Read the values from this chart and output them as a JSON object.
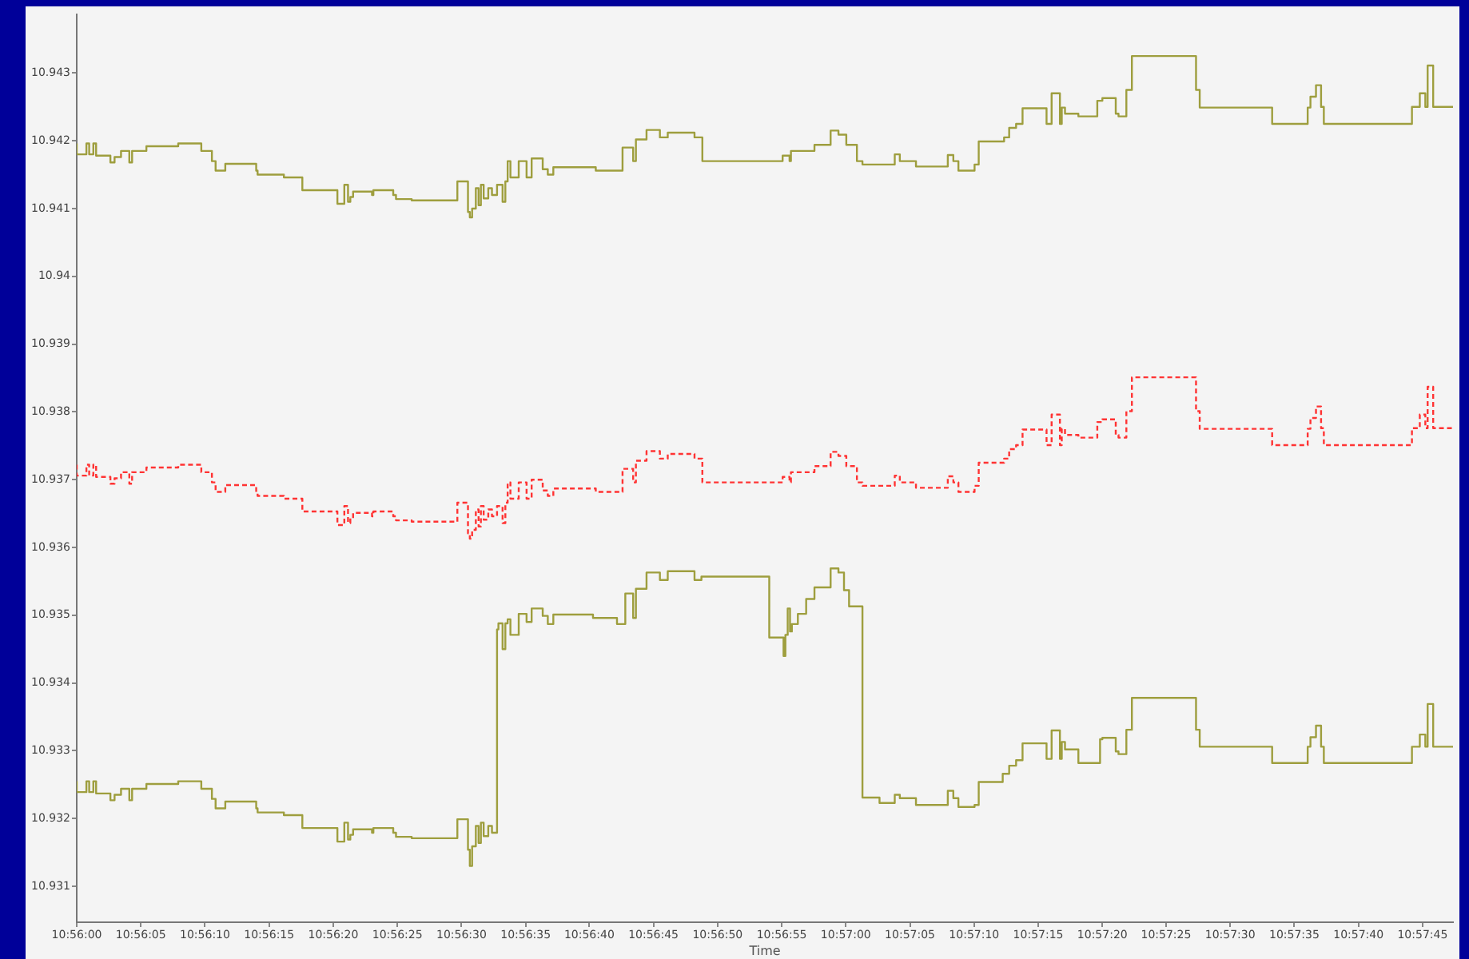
{
  "chart_data": {
    "type": "step",
    "xlabel": "Time",
    "grid": false,
    "xlim": [
      10.93333,
      10.96316
    ],
    "ylim": [
      10.93047,
      10.94386
    ],
    "xticks": [
      {
        "value": 10.93333,
        "label": "10:56:00"
      },
      {
        "value": 10.93472,
        "label": "10:56:05"
      },
      {
        "value": 10.93611,
        "label": "10:56:10"
      },
      {
        "value": 10.9375,
        "label": "10:56:15"
      },
      {
        "value": 10.93889,
        "label": "10:56:20"
      },
      {
        "value": 10.94028,
        "label": "10:56:25"
      },
      {
        "value": 10.94167,
        "label": "10:56:30"
      },
      {
        "value": 10.94306,
        "label": "10:56:35"
      },
      {
        "value": 10.94444,
        "label": "10:56:40"
      },
      {
        "value": 10.94583,
        "label": "10:56:45"
      },
      {
        "value": 10.94722,
        "label": "10:56:50"
      },
      {
        "value": 10.94861,
        "label": "10:56:55"
      },
      {
        "value": 10.95,
        "label": "10:57:00"
      },
      {
        "value": 10.95139,
        "label": "10:57:05"
      },
      {
        "value": 10.95278,
        "label": "10:57:10"
      },
      {
        "value": 10.95417,
        "label": "10:57:15"
      },
      {
        "value": 10.95556,
        "label": "10:57:20"
      },
      {
        "value": 10.95694,
        "label": "10:57:25"
      },
      {
        "value": 10.95833,
        "label": "10:57:30"
      },
      {
        "value": 10.95972,
        "label": "10:57:35"
      },
      {
        "value": 10.96111,
        "label": "10:57:40"
      },
      {
        "value": 10.9625,
        "label": "10:57:45"
      }
    ],
    "yticks": [
      10.931,
      10.932,
      10.933,
      10.934,
      10.935,
      10.936,
      10.937,
      10.938,
      10.939,
      10.94,
      10.941,
      10.942,
      10.943
    ],
    "x": [
      10.93333,
      10.93354,
      10.9336,
      10.93369,
      10.93375,
      10.93406,
      10.93415,
      10.93429,
      10.93447,
      10.93453,
      10.93484,
      10.93553,
      10.93603,
      10.93626,
      10.93634,
      10.93655,
      10.93722,
      10.93725,
      10.93782,
      10.93822,
      10.93898,
      10.93913,
      10.93921,
      10.93926,
      10.93932,
      10.93973,
      10.93976,
      10.94019,
      10.94025,
      10.94059,
      10.94158,
      10.94181,
      10.94185,
      10.9419,
      10.94198,
      10.94204,
      10.94209,
      10.94215,
      10.94225,
      10.94233,
      10.94244,
      10.94256,
      10.94262,
      10.94267,
      10.94273,
      10.94291,
      10.94308,
      10.94319,
      10.94343,
      10.94354,
      10.94366,
      10.94458,
      10.94516,
      10.94539,
      10.94545,
      10.94568,
      10.94597,
      10.94614,
      10.94672,
      10.94689,
      10.94863,
      10.94878,
      10.94881,
      10.94932,
      10.94967,
      10.94984,
      10.95001,
      10.95024,
      10.95036,
      10.95106,
      10.95117,
      10.95152,
      10.95221,
      10.95233,
      10.95244,
      10.95279,
      10.95288,
      10.95343,
      10.95354,
      10.95369,
      10.95383,
      10.95435,
      10.95446,
      10.95464,
      10.95468,
      10.95475,
      10.95504,
      10.95545,
      10.95556,
      10.95585,
      10.95591,
      10.95608,
      10.9562,
      10.95759,
      10.95767,
      10.95924,
      10.96001,
      10.96007,
      10.96019,
      10.9603,
      10.96036,
      10.96227,
      10.96244,
      10.96256,
      10.96261,
      10.96273,
      10.96284,
      10.96316
    ],
    "series": [
      {
        "color": "#9e9e3e",
        "values": [
          10.94196,
          10.9418,
          10.94196,
          10.9418,
          10.94196,
          10.94178,
          10.94168,
          10.94176,
          10.94185,
          10.94168,
          10.94185,
          10.94192,
          10.94196,
          10.94185,
          10.9417,
          10.94156,
          10.94166,
          10.94156,
          10.9415,
          10.94146,
          10.94127,
          10.94107,
          10.94135,
          10.9411,
          10.94117,
          10.94125,
          10.9412,
          10.94127,
          10.9412,
          10.94114,
          10.94112,
          10.9414,
          10.94095,
          10.94087,
          10.941,
          10.9413,
          10.94105,
          10.94135,
          10.94115,
          10.9413,
          10.9412,
          10.94135,
          10.9411,
          10.9414,
          10.9417,
          10.94146,
          10.9417,
          10.94146,
          10.94174,
          10.94158,
          10.9415,
          10.94161,
          10.94156,
          10.9419,
          10.9417,
          10.94202,
          10.94216,
          10.94205,
          10.94212,
          10.94205,
          10.9417,
          10.94178,
          10.9417,
          10.94185,
          10.94194,
          10.94215,
          10.94209,
          10.94194,
          10.9417,
          10.94165,
          10.9418,
          10.9417,
          10.94162,
          10.94179,
          10.9417,
          10.94156,
          10.94165,
          10.94199,
          10.94205,
          10.94219,
          10.94225,
          10.94248,
          10.94225,
          10.9427,
          10.94225,
          10.94249,
          10.9424,
          10.94236,
          10.94259,
          10.94263,
          10.9424,
          10.94236,
          10.94275,
          10.94325,
          10.94275,
          10.94249,
          10.94225,
          10.94249,
          10.94265,
          10.94282,
          10.9425,
          10.94225,
          10.9425,
          10.9427,
          10.9425,
          10.94311,
          10.9425,
          10.9425
        ]
      },
      {
        "color": "#ff3333",
        "line_style": "dashed",
        "values": [
          10.93722,
          10.93706,
          10.93722,
          10.93706,
          10.93722,
          10.93704,
          10.93694,
          10.93702,
          10.93711,
          10.93694,
          10.93711,
          10.93718,
          10.93722,
          10.93711,
          10.93696,
          10.93682,
          10.93692,
          10.93682,
          10.93676,
          10.93672,
          10.93653,
          10.93633,
          10.93661,
          10.93636,
          10.93643,
          10.93651,
          10.93646,
          10.93653,
          10.93646,
          10.9364,
          10.93638,
          10.93666,
          10.93621,
          10.93613,
          10.93626,
          10.93656,
          10.93631,
          10.93661,
          10.93641,
          10.93656,
          10.93646,
          10.93661,
          10.93636,
          10.93666,
          10.93696,
          10.93672,
          10.93696,
          10.93672,
          10.937,
          10.93684,
          10.93676,
          10.93687,
          10.93682,
          10.93716,
          10.93696,
          10.93728,
          10.93742,
          10.93731,
          10.93738,
          10.93731,
          10.93696,
          10.93704,
          10.93696,
          10.93711,
          10.9372,
          10.93741,
          10.93735,
          10.9372,
          10.93696,
          10.93691,
          10.93706,
          10.93696,
          10.93688,
          10.93705,
          10.93696,
          10.93682,
          10.93691,
          10.93725,
          10.93731,
          10.93745,
          10.93751,
          10.93774,
          10.93751,
          10.93796,
          10.93751,
          10.93775,
          10.93766,
          10.93762,
          10.93785,
          10.93789,
          10.93766,
          10.93762,
          10.93801,
          10.93851,
          10.93801,
          10.93775,
          10.93751,
          10.93775,
          10.93791,
          10.93808,
          10.93776,
          10.93751,
          10.93776,
          10.93796,
          10.93776,
          10.93837,
          10.93776,
          10.93776
        ]
      },
      {
        "color": "#9e9e3e",
        "x": [
          10.93333,
          10.93354,
          10.9336,
          10.93369,
          10.93375,
          10.93406,
          10.93415,
          10.93429,
          10.93447,
          10.93453,
          10.93484,
          10.93553,
          10.93603,
          10.93626,
          10.93634,
          10.93655,
          10.93722,
          10.93725,
          10.93782,
          10.93822,
          10.93898,
          10.93913,
          10.93921,
          10.93926,
          10.93932,
          10.93973,
          10.93976,
          10.94019,
          10.94025,
          10.94059,
          10.94158,
          10.94181,
          10.94185,
          10.9419,
          10.94198,
          10.94204,
          10.94209,
          10.94215,
          10.94225,
          10.94233,
          10.94244,
          10.94247,
          10.94256,
          10.94262,
          10.94267,
          10.94273,
          10.94291,
          10.94308,
          10.94319,
          10.94343,
          10.94354,
          10.94366,
          10.94452,
          10.94504,
          10.94522,
          10.94539,
          10.94545,
          10.94568,
          10.94597,
          10.94614,
          10.94672,
          10.94687,
          10.94834,
          10.94865,
          10.94869,
          10.94874,
          10.94879,
          10.94883,
          10.94896,
          10.94914,
          10.94932,
          10.94967,
          10.94984,
          10.94996,
          10.95007,
          10.95036,
          10.95073,
          10.95106,
          10.95117,
          10.95152,
          10.95221,
          10.95233,
          10.95244,
          10.95279,
          10.95288,
          10.9534,
          10.95354,
          10.95369,
          10.95383,
          10.95435,
          10.95446,
          10.95464,
          10.95468,
          10.95475,
          10.95504,
          10.95551,
          10.95556,
          10.95585,
          10.95591,
          10.95608,
          10.9562,
          10.95759,
          10.95767,
          10.95924,
          10.96001,
          10.96007,
          10.96019,
          10.9603,
          10.96036,
          10.96227,
          10.96244,
          10.96256,
          10.96261,
          10.96273,
          10.96284,
          10.96316
        ],
        "values": [
          10.93255,
          10.93239,
          10.93255,
          10.93239,
          10.93255,
          10.93237,
          10.93227,
          10.93235,
          10.93244,
          10.93227,
          10.93244,
          10.93251,
          10.93255,
          10.93244,
          10.93229,
          10.93215,
          10.93225,
          10.93215,
          10.93209,
          10.93205,
          10.93186,
          10.93166,
          10.93194,
          10.93169,
          10.93176,
          10.93184,
          10.93179,
          10.93186,
          10.93179,
          10.93173,
          10.93171,
          10.93199,
          10.93154,
          10.9313,
          10.93159,
          10.93189,
          10.93164,
          10.93194,
          10.93174,
          10.93189,
          10.93179,
          10.93479,
          10.93488,
          10.9345,
          10.93488,
          10.93494,
          10.93471,
          10.93502,
          10.9349,
          10.9351,
          10.93499,
          10.93487,
          10.93501,
          10.93496,
          10.93487,
          10.93532,
          10.93496,
          10.93539,
          10.93563,
          10.93552,
          10.93565,
          10.93552,
          10.93557,
          10.93467,
          10.9344,
          10.93471,
          10.9351,
          10.93476,
          10.93487,
          10.93502,
          10.93524,
          10.93541,
          10.93569,
          10.93563,
          10.93537,
          10.93513,
          10.93231,
          10.93223,
          10.93235,
          10.9323,
          10.9322,
          10.93241,
          10.9323,
          10.93217,
          10.9322,
          10.93254,
          10.93266,
          10.93278,
          10.93286,
          10.93311,
          10.93288,
          10.9333,
          10.93288,
          10.93313,
          10.93302,
          10.93282,
          10.93317,
          10.93319,
          10.93299,
          10.93295,
          10.93331,
          10.93378,
          10.93331,
          10.93306,
          10.93282,
          10.93306,
          10.9332,
          10.93337,
          10.93306,
          10.93282,
          10.93306,
          10.93324,
          10.93306,
          10.93369,
          10.93306,
          10.93306
        ]
      }
    ]
  }
}
